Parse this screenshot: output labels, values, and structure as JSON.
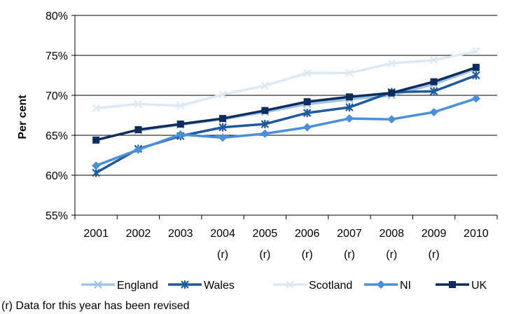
{
  "chart_data": {
    "type": "line",
    "title": "",
    "xlabel": "",
    "ylabel": "Per cent",
    "ylim": [
      55,
      80
    ],
    "ytick_step": 5,
    "ytick_suffix": "%",
    "grid": "horizontal",
    "legend_position": "bottom",
    "categories": [
      "2001",
      "2002",
      "2003",
      "2004",
      "2005",
      "2006",
      "2007",
      "2008",
      "2009",
      "2010"
    ],
    "category_sublabels": [
      "",
      "",
      "",
      "(r)",
      "(r)",
      "(r)",
      "(r)",
      "(r)",
      "(r)",
      ""
    ],
    "series": [
      {
        "name": "England",
        "color": "#9dc3e6",
        "marker": "x-icon",
        "values": [
          null,
          65.6,
          66.3,
          67.0,
          67.9,
          68.9,
          69.5,
          70.0,
          71.4,
          73.3
        ]
      },
      {
        "name": "Wales",
        "color": "#1f5a9c",
        "marker": "asterisk-icon",
        "values": [
          60.3,
          63.3,
          64.9,
          66.0,
          66.4,
          67.8,
          68.5,
          70.4,
          70.5,
          72.5
        ]
      },
      {
        "name": "Scotland",
        "color": "#dce8f5",
        "marker": "x-icon",
        "values": [
          68.4,
          68.9,
          68.7,
          70.1,
          71.2,
          72.8,
          72.8,
          74.0,
          74.4,
          75.5
        ]
      },
      {
        "name": "NI",
        "color": "#4a8fd8",
        "marker": "diamond-icon",
        "values": [
          61.2,
          63.2,
          65.1,
          64.7,
          65.2,
          66.0,
          67.1,
          67.0,
          67.9,
          69.6
        ]
      },
      {
        "name": "UK",
        "color": "#0f2d5c",
        "marker": "square-icon",
        "values": [
          64.4,
          65.7,
          66.4,
          67.1,
          68.1,
          69.2,
          69.8,
          70.3,
          71.7,
          73.5
        ]
      }
    ]
  },
  "footnote": "(r) Data for this year has been revised"
}
